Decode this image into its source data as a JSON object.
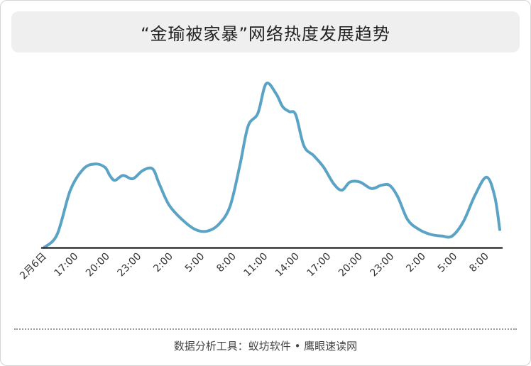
{
  "chart_data": {
    "type": "line",
    "title": "“金瑜被家暴”网络热度发展趋势",
    "xlabel": "",
    "ylabel": "",
    "grid": false,
    "x_ticks": [
      "2月6日",
      "17:00",
      "20:00",
      "23:00",
      "2:00",
      "5:00",
      "8:00",
      "11:00",
      "14:00",
      "17:00",
      "20:00",
      "23:00",
      "2:00",
      "5:00",
      "8:00"
    ],
    "ylim": [
      0,
      100
    ],
    "series": [
      {
        "color": "#5aa3c4",
        "points": [
          [
            0,
            0
          ],
          [
            0.8,
            8
          ],
          [
            1.6,
            35
          ],
          [
            2.4,
            48
          ],
          [
            3.1,
            51
          ],
          [
            3.7,
            49
          ],
          [
            4.0,
            44
          ],
          [
            4.3,
            41
          ],
          [
            4.8,
            44
          ],
          [
            5.4,
            42
          ],
          [
            6.0,
            47
          ],
          [
            6.6,
            48
          ],
          [
            7.0,
            39
          ],
          [
            7.6,
            26
          ],
          [
            8.4,
            17
          ],
          [
            9.2,
            11
          ],
          [
            9.9,
            10
          ],
          [
            10.6,
            14
          ],
          [
            11.3,
            25
          ],
          [
            11.9,
            50
          ],
          [
            12.4,
            74
          ],
          [
            13.0,
            82
          ],
          [
            13.5,
            100
          ],
          [
            14.1,
            94
          ],
          [
            14.5,
            86
          ],
          [
            14.9,
            83
          ],
          [
            15.3,
            81
          ],
          [
            15.8,
            62
          ],
          [
            16.4,
            56
          ],
          [
            17.0,
            49
          ],
          [
            17.6,
            39
          ],
          [
            18.1,
            35
          ],
          [
            18.6,
            40
          ],
          [
            19.2,
            40
          ],
          [
            19.9,
            36
          ],
          [
            20.5,
            38
          ],
          [
            21.0,
            38
          ],
          [
            21.5,
            31
          ],
          [
            22.1,
            17
          ],
          [
            22.8,
            11
          ],
          [
            23.5,
            8
          ],
          [
            24.2,
            7
          ],
          [
            24.8,
            7
          ],
          [
            25.5,
            16
          ],
          [
            26.2,
            32
          ],
          [
            26.9,
            43
          ],
          [
            27.4,
            31
          ],
          [
            27.7,
            11
          ]
        ]
      }
    ]
  },
  "footer": {
    "source": "数据分析工具：蚁坊软件 • 鹰眼速读网"
  },
  "colors": {
    "line": "#5aa3c4",
    "axis": "#333333",
    "title_bg": "#efefef"
  }
}
